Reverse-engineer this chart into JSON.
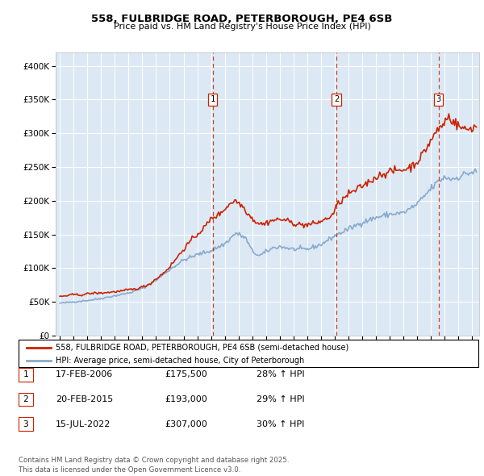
{
  "title1": "558, FULBRIDGE ROAD, PETERBOROUGH, PE4 6SB",
  "title2": "Price paid vs. HM Land Registry's House Price Index (HPI)",
  "plot_bg_color": "#dce9f5",
  "grid_color": "#ffffff",
  "red_line_color": "#cc2200",
  "blue_line_color": "#88aacc",
  "ylim": [
    0,
    420000
  ],
  "yticks": [
    0,
    50000,
    100000,
    150000,
    200000,
    250000,
    300000,
    350000,
    400000
  ],
  "xlim_start": 1994.7,
  "xlim_end": 2025.5,
  "legend_red": "558, FULBRIDGE ROAD, PETERBOROUGH, PE4 6SB (semi-detached house)",
  "legend_blue": "HPI: Average price, semi-detached house, City of Peterborough",
  "transactions": [
    {
      "num": 1,
      "date": "17-FEB-2006",
      "price": "£175,500",
      "hpi": "28% ↑ HPI",
      "year": 2006.12
    },
    {
      "num": 2,
      "date": "20-FEB-2015",
      "price": "£193,000",
      "hpi": "29% ↑ HPI",
      "year": 2015.12
    },
    {
      "num": 3,
      "date": "15-JUL-2022",
      "price": "£307,000",
      "hpi": "30% ↑ HPI",
      "year": 2022.54
    }
  ],
  "footer": "Contains HM Land Registry data © Crown copyright and database right 2025.\nThis data is licensed under the Open Government Licence v3.0."
}
